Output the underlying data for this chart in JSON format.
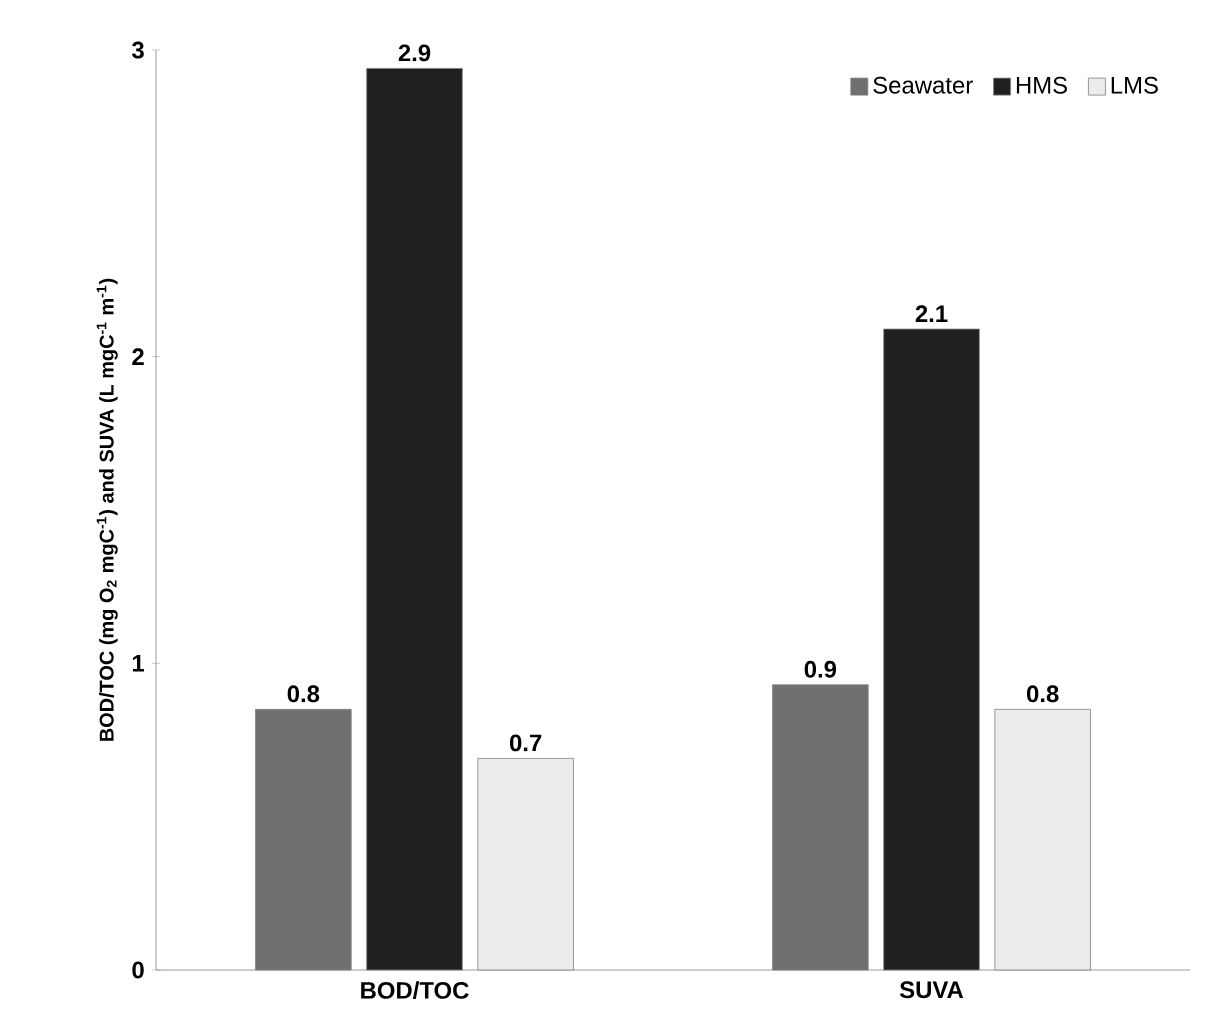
{
  "chart_data": {
    "type": "bar",
    "ylabel": "BOD/TOC (mg O$_{2}$ mgC$^{-1}$)  and SUVA (L mgC$^{-1}$ m$^{-1}$)",
    "categories": [
      "BOD/TOC",
      "SUVA"
    ],
    "series": [
      {
        "name": "Seawater",
        "color": "#707070",
        "values": [
          0.85,
          0.93
        ],
        "value_labels": [
          "0.8",
          "0.9"
        ]
      },
      {
        "name": "HMS",
        "color": "#202020",
        "values": [
          2.94,
          2.09
        ],
        "value_labels": [
          "2.9",
          "2.1"
        ]
      },
      {
        "name": "LMS",
        "color": "#ececec",
        "values": [
          0.69,
          0.85
        ],
        "value_labels": [
          "0.7",
          "0.8"
        ]
      }
    ],
    "ylim": [
      0,
      3
    ],
    "yticks": [
      0,
      1,
      2,
      3
    ],
    "grid": false,
    "legend": "top right"
  }
}
